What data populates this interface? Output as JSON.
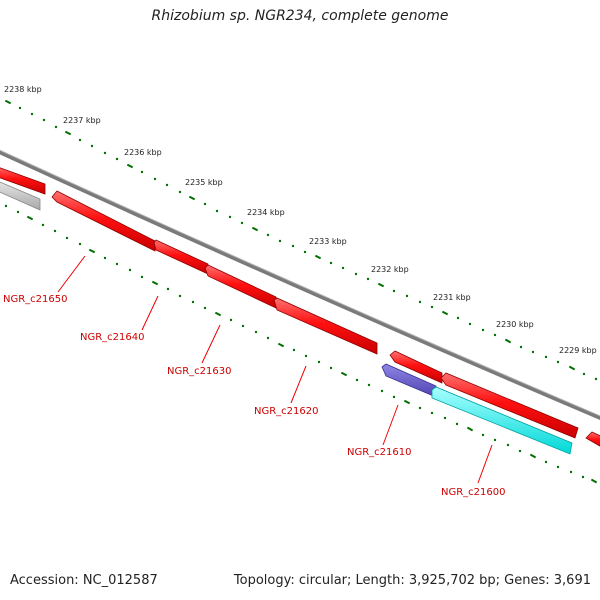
{
  "title": "Rhizobium sp. NGR234, complete genome",
  "footer": {
    "accession": "Accession: NC_012587",
    "summary": "Topology: circular; Length: 3,925,702 bp; Genes: 3,691"
  },
  "colors": {
    "backbone": "#808080",
    "gene_red": "#ff0000",
    "gene_gray": "#c0c0c0",
    "gene_purple": "#6a5acd",
    "gene_cyan": "#00ffff",
    "ticks": "#007000",
    "label_red": "#cc0000"
  },
  "kbp_labels": [
    "2238 kbp",
    "2237 kbp",
    "2236 kbp",
    "2235 kbp",
    "2234 kbp",
    "2233 kbp",
    "2232 kbp",
    "2231 kbp",
    "2230 kbp",
    "2229 kbp"
  ],
  "gene_labels": [
    "NGR_c21650",
    "NGR_c21640",
    "NGR_c21630",
    "NGR_c21620",
    "NGR_c21610",
    "NGR_c21600"
  ]
}
